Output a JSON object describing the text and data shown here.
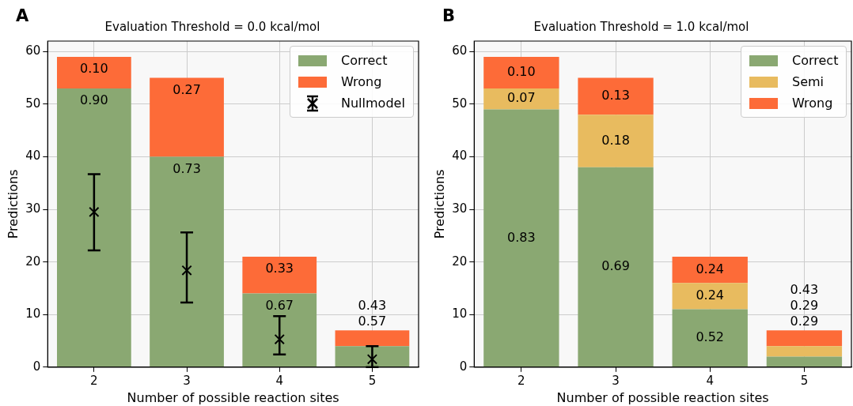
{
  "chart_data": [
    {
      "type": "bar",
      "title": "Evaluation Threshold = 0.0 kcal/mol",
      "xlabel": "Number of possible reaction sites",
      "ylabel": "Predictions",
      "categories": [
        "2",
        "3",
        "4",
        "5"
      ],
      "stacked": true,
      "ylim": [
        0,
        62
      ],
      "yticks": [
        0,
        10,
        20,
        30,
        40,
        50,
        60
      ],
      "grid": true,
      "legend": "top right",
      "annotations": [
        "A",
        "0.90",
        "0.10",
        "0.73",
        "0.27",
        "0.67",
        "0.33",
        "0.57",
        "0.43"
      ],
      "series": [
        {
          "name": "Correct",
          "color": "#8aa872",
          "values": [
            53,
            40,
            14,
            4
          ]
        },
        {
          "name": "Wrong",
          "color": "#fd6b38",
          "values": [
            6,
            15,
            7,
            3
          ]
        },
        {
          "name": "Nullmodel",
          "type": "scatter",
          "color": "#000000",
          "marker": "cross",
          "x": [
            "2",
            "3",
            "4",
            "5"
          ],
          "values": [
            29.5,
            18.4,
            5.3,
            1.5
          ],
          "errors": [
            [
              22.2,
              36.7
            ],
            [
              12.3,
              25.6
            ],
            [
              2.4,
              9.7
            ],
            [
              0,
              4.0
            ]
          ]
        }
      ]
    },
    {
      "type": "bar",
      "title": "Evaluation Threshold = 1.0 kcal/mol",
      "xlabel": "Number of possible reaction sites",
      "ylabel": "Predictions",
      "categories": [
        "2",
        "3",
        "4",
        "5"
      ],
      "stacked": true,
      "ylim": [
        0,
        62
      ],
      "yticks": [
        0,
        10,
        20,
        30,
        40,
        50,
        60
      ],
      "grid": true,
      "legend": "top right",
      "annotations": [
        "B",
        "0.83",
        "0.07",
        "0.10",
        "0.69",
        "0.18",
        "0.13",
        "0.52",
        "0.24",
        "0.24",
        "0.29",
        "0.29",
        "0.43"
      ],
      "series": [
        {
          "name": "Correct",
          "color": "#8aa872",
          "values": [
            49,
            38,
            11,
            2
          ]
        },
        {
          "name": "Semi",
          "color": "#e8bb5f",
          "values": [
            4,
            10,
            5,
            2
          ]
        },
        {
          "name": "Wrong",
          "color": "#fd6b38",
          "values": [
            6,
            7,
            5,
            3
          ]
        }
      ]
    }
  ]
}
